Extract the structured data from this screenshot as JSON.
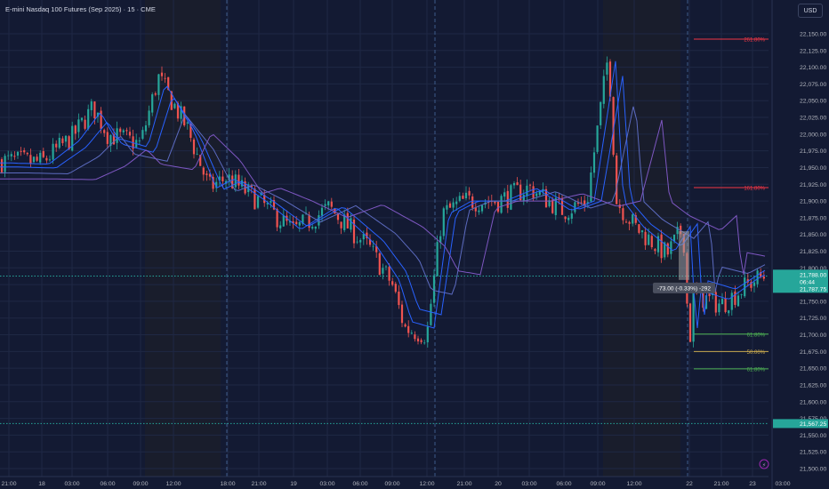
{
  "header": {
    "symbol_title": "E-mini Nasdaq 100 Futures (Sep 2025) · 15 · CME",
    "currency": "USD"
  },
  "price_axis": {
    "ticks": [
      "22,150.00",
      "22,125.00",
      "22,100.00",
      "22,075.00",
      "22,050.00",
      "22,025.00",
      "22,000.00",
      "21,975.00",
      "21,950.00",
      "21,925.00",
      "21,900.00",
      "21,875.00",
      "21,850.00",
      "21,825.00",
      "21,800.00",
      "21,775.00",
      "21,750.00",
      "21,725.00",
      "21,700.00",
      "21,675.00",
      "21,650.00",
      "21,625.00",
      "21,600.00",
      "21,575.00",
      "21,550.00",
      "21,525.00",
      "21,500.00"
    ]
  },
  "time_axis": {
    "labels": [
      "21:00",
      "18",
      "03:00",
      "06:00",
      "09:00",
      "12:00",
      "18:00",
      "21:00",
      "19",
      "03:00",
      "06:00",
      "09:00",
      "12:00",
      "21:00",
      "20",
      "03:00",
      "06:00",
      "09:00",
      "12:00",
      "22",
      "21:00",
      "23",
      "03:00"
    ]
  },
  "price_tags": {
    "last_price": "21,788.00",
    "countdown": "06:44",
    "level_high": "21,787.75",
    "level_low": "21,567.25"
  },
  "fib_labels": [
    "261.80%",
    "161.80%",
    "61.80%",
    "50.00%",
    "61.80%"
  ],
  "measure_label": "-73.00 (-0.33%) -292",
  "colors": {
    "background": "#131a33",
    "session_shade": "#1b1e2b",
    "up": "#26a69a",
    "down": "#ef5350",
    "ma_blue": "#2962ff",
    "ma_purple": "#7e57c2",
    "fib_red": "#f23645",
    "fib_green": "#4caf50",
    "fib_yellow": "#c9a94e"
  },
  "chart_data": {
    "type": "candlestick",
    "instrument": "E-mini Nasdaq 100 Futures (Sep 2025)",
    "interval": "15",
    "exchange": "CME",
    "ylim": [
      21500,
      22175
    ],
    "close_path": [
      {
        "t": "17 21:00",
        "price": 21960
      },
      {
        "t": "18 00:00",
        "price": 21958
      },
      {
        "t": "18 03:00",
        "price": 21995
      },
      {
        "t": "18 05:00",
        "price": 22040
      },
      {
        "t": "18 06:00",
        "price": 22000
      },
      {
        "t": "18 09:00",
        "price": 21985
      },
      {
        "t": "18 11:00",
        "price": 22085
      },
      {
        "t": "18 14:00",
        "price": 22010
      },
      {
        "t": "18 16:00",
        "price": 21920
      },
      {
        "t": "18 18:00",
        "price": 21935
      },
      {
        "t": "18 21:00",
        "price": 21900
      },
      {
        "t": "19 00:00",
        "price": 21855
      },
      {
        "t": "19 03:00",
        "price": 21890
      },
      {
        "t": "19 06:00",
        "price": 21830
      },
      {
        "t": "19 09:00",
        "price": 21775
      },
      {
        "t": "19 10:30",
        "price": 21710
      },
      {
        "t": "19 12:00",
        "price": 21700
      },
      {
        "t": "19 14:00",
        "price": 21880
      },
      {
        "t": "20 00:00",
        "price": 21900
      },
      {
        "t": "20 03:00",
        "price": 21900
      },
      {
        "t": "20 06:00",
        "price": 21920
      },
      {
        "t": "20 09:00",
        "price": 21885
      },
      {
        "t": "20 11:00",
        "price": 21900
      },
      {
        "t": "20 13:00",
        "price": 22120
      },
      {
        "t": "20 14:30",
        "price": 21900
      },
      {
        "t": "20 16:00",
        "price": 21860
      },
      {
        "t": "21 21:00",
        "price": 21820
      },
      {
        "t": "22 00:00",
        "price": 21860
      },
      {
        "t": "22 02:00",
        "price": 21680
      },
      {
        "t": "22 03:00",
        "price": 21760
      },
      {
        "t": "22 21:00",
        "price": 21745
      },
      {
        "t": "23 00:00",
        "price": 21780
      },
      {
        "t": "23 02:00",
        "price": 21788
      }
    ],
    "fib_levels": [
      {
        "label": "261.80%",
        "price": 22142
      },
      {
        "label": "161.80%",
        "price": 21920
      },
      {
        "label": "61.80%",
        "price": 21701
      },
      {
        "label": "50.00%",
        "price": 21675
      },
      {
        "label": "61.80%",
        "price": 21649
      }
    ],
    "last_price": 21788.0,
    "horizontal_levels": [
      21787.75,
      21567.25
    ],
    "measure": {
      "change": -73.0,
      "percent": -0.33,
      "ticks": -292
    },
    "moving_averages": 4,
    "grid": true
  }
}
